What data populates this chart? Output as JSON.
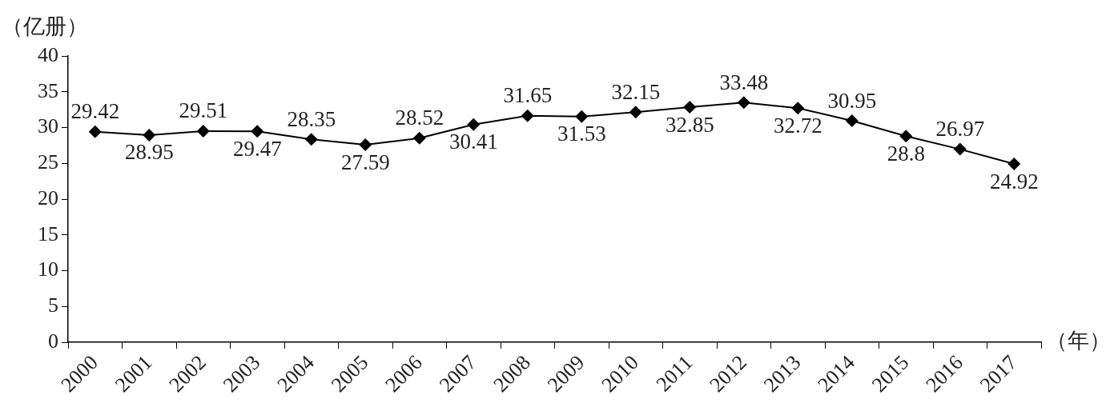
{
  "chart_data": {
    "type": "line",
    "xlabel": "（年）",
    "ylabel": "（亿册）",
    "categories": [
      "2000",
      "2001",
      "2002",
      "2003",
      "2004",
      "2005",
      "2006",
      "2007",
      "2008",
      "2009",
      "2010",
      "2011",
      "2012",
      "2013",
      "2014",
      "2015",
      "2016",
      "2017"
    ],
    "series": [
      {
        "color": "#000000",
        "values": [
          29.42,
          28.95,
          29.51,
          29.47,
          28.35,
          27.59,
          28.52,
          30.41,
          31.65,
          31.53,
          32.15,
          32.85,
          33.48,
          32.72,
          30.95,
          28.8,
          26.97,
          24.92
        ]
      }
    ],
    "ylim": [
      0,
      40
    ],
    "yticks": [
      0,
      5,
      10,
      15,
      20,
      25,
      30,
      35,
      40
    ],
    "grid": false,
    "legend": false,
    "marker": "diamond",
    "line_style": "solid",
    "data_labels": true
  }
}
